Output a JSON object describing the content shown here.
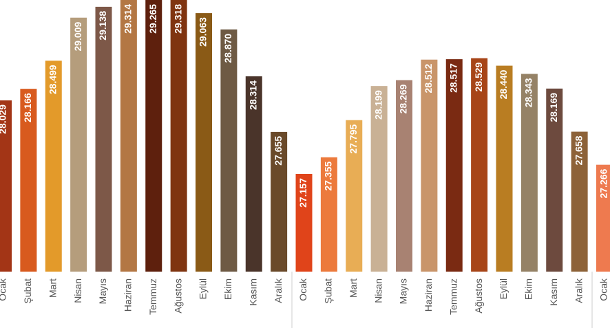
{
  "chart_data": {
    "type": "bar",
    "categories": [
      "Ocak",
      "Şubat",
      "Mart",
      "Nisan",
      "Mayıs",
      "Haziran",
      "Temmuz",
      "Ağustos",
      "Eylül",
      "Ekim",
      "Kasım",
      "Aralık",
      "Ocak",
      "Şubat",
      "Mart",
      "Nisan",
      "Mayıs",
      "Haziran",
      "Temmuz",
      "Ağustos",
      "Eylül",
      "Ekim",
      "Kasım",
      "Aralık",
      "Ocak"
    ],
    "values": [
      28.029,
      28.166,
      28.499,
      29.009,
      29.138,
      29.314,
      29.265,
      29.318,
      29.063,
      28.87,
      28.314,
      27.655,
      27.157,
      27.355,
      27.795,
      28.199,
      28.269,
      28.512,
      28.517,
      28.529,
      28.44,
      28.343,
      28.169,
      27.658,
      27.266
    ],
    "value_labels": [
      "28.029",
      "28.166",
      "28.499",
      "29.009",
      "29.138",
      "29.314",
      "29.265",
      "29.318",
      "29.063",
      "28.870",
      "28.314",
      "27.655",
      "27.157",
      "27.355",
      "27.795",
      "28.199",
      "28.269",
      "28.512",
      "28.517",
      "28.529",
      "28.440",
      "28.343",
      "28.169",
      "27.658",
      "27.266"
    ],
    "colors": [
      "#a33516",
      "#d85a1e",
      "#e39a2a",
      "#b59d7c",
      "#7d5848",
      "#b37744",
      "#5e200d",
      "#7f3410",
      "#8a5a16",
      "#6e5a44",
      "#4a342a",
      "#6a4a2a",
      "#e0441a",
      "#ec7a3c",
      "#e8ad55",
      "#c9b195",
      "#a88272",
      "#c9956a",
      "#7a2a12",
      "#a74518",
      "#b97d22",
      "#958266",
      "#6d4a3e",
      "#8d6238",
      "#ee7a4f"
    ],
    "ylim": [
      26,
      29.3
    ]
  }
}
